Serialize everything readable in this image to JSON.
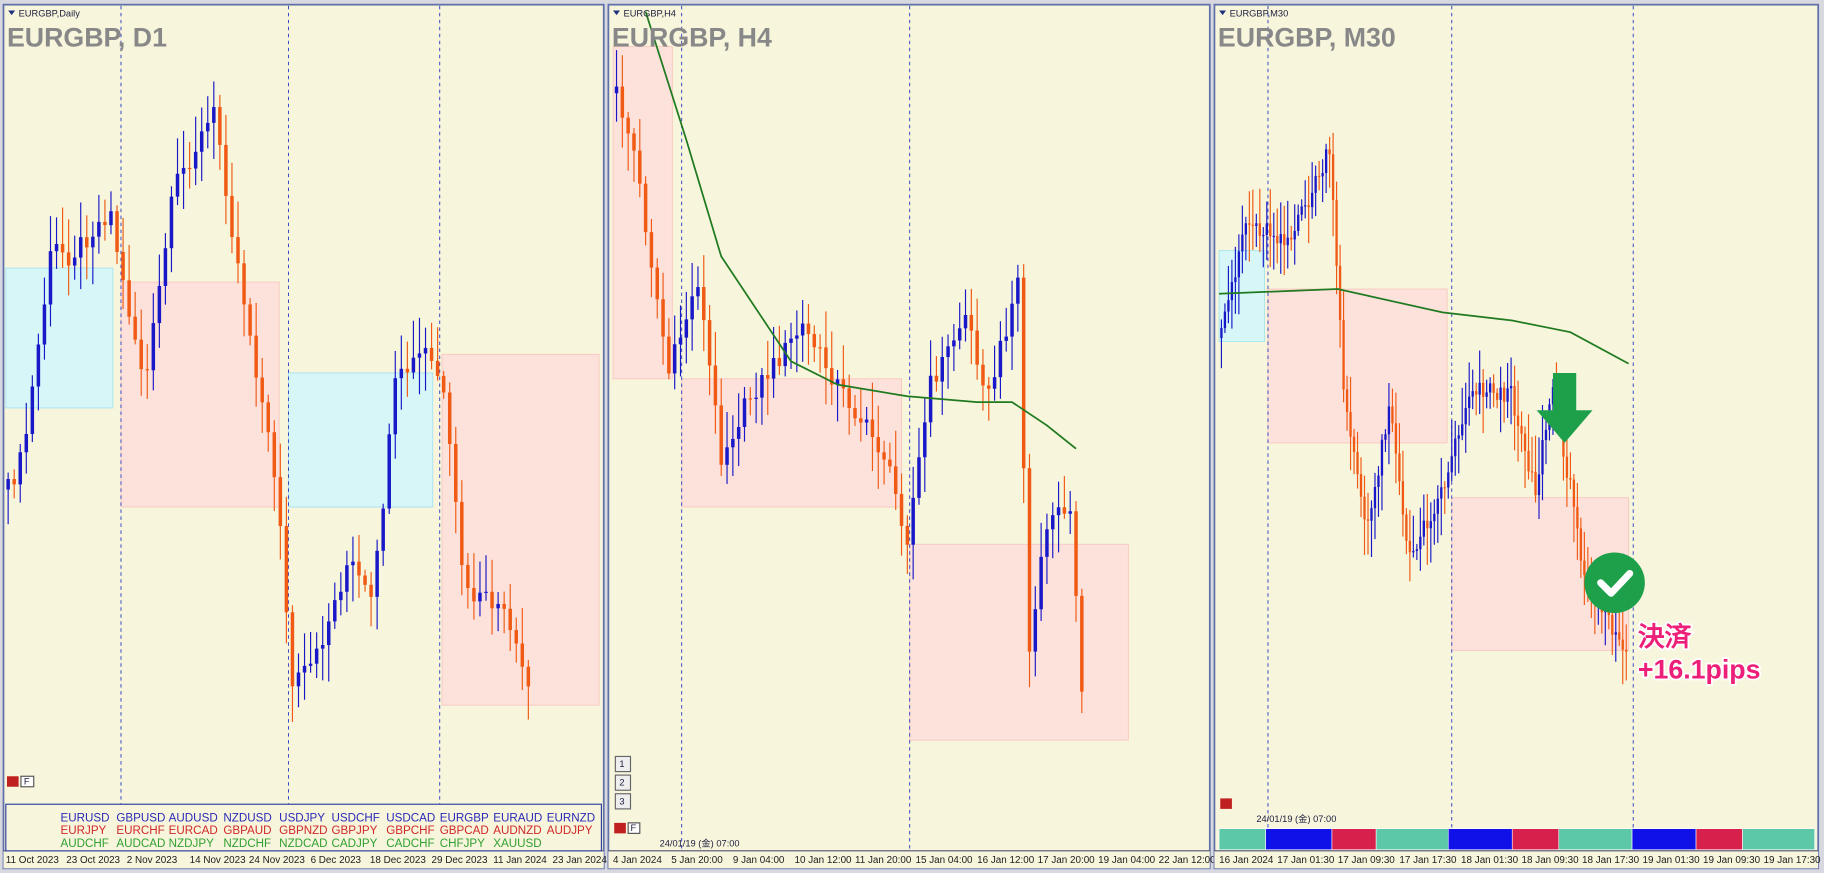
{
  "panels": [
    {
      "label": "EURGBP,Daily",
      "title": "EURGBP, D1",
      "dates": [
        "11 Oct 2023",
        "23 Oct 2023",
        "2 Nov 2023",
        "14 Nov 2023",
        "24 Nov 2023",
        "6 Dec 2023",
        "18 Dec 2023",
        "29 Dec 2023",
        "11 Jan 2024",
        "23 Jan 2024"
      ]
    },
    {
      "label": "EURGBP,H4",
      "title": "EURGBP, H4",
      "dates": [
        "4 Jan 2024",
        "5 Jan 20:00",
        "9 Jan 04:00",
        "10 Jan 12:00",
        "11 Jan 20:00",
        "15 Jan 04:00",
        "16 Jan 12:00",
        "17 Jan 20:00",
        "19 Jan 04:00",
        "22 Jan 12:00"
      ]
    },
    {
      "label": "EURGBP,M30",
      "title": "EURGBP, M30",
      "dates": [
        "16 Jan 2024",
        "17 Jan 01:30",
        "17 Jan 09:30",
        "17 Jan 17:30",
        "18 Jan 01:30",
        "18 Jan 09:30",
        "18 Jan 17:30",
        "19 Jan 01:30",
        "19 Jan 09:30",
        "19 Jan 17:30"
      ]
    }
  ],
  "symbols": [
    [
      "EURUSD",
      "GBPUSD",
      "AUDUSD",
      "NZDUSD",
      "USDJPY",
      "USDCHF",
      "USDCAD",
      "EURGBP",
      "EURAUD",
      "EURNZD"
    ],
    [
      "EURJPY",
      "EURCHF",
      "EURCAD",
      "GBPAUD",
      "GBPNZD",
      "GBPJPY",
      "GBPCHF",
      "GBPCAD",
      "AUDNZD",
      "AUDJPY"
    ],
    [
      "AUDCHF",
      "AUDCAD",
      "NZDJPY",
      "NZDCHF",
      "NZDCAD",
      "CADJPY",
      "CADCHF",
      "CHFJPY",
      "XAUUSD"
    ]
  ],
  "filter_button": "F",
  "period_buttons": [
    "1",
    "2",
    "3"
  ],
  "timestamp": "24/01/19 (金) 07:00",
  "annotation": {
    "action": "決済",
    "result": "+16.1pips"
  }
}
